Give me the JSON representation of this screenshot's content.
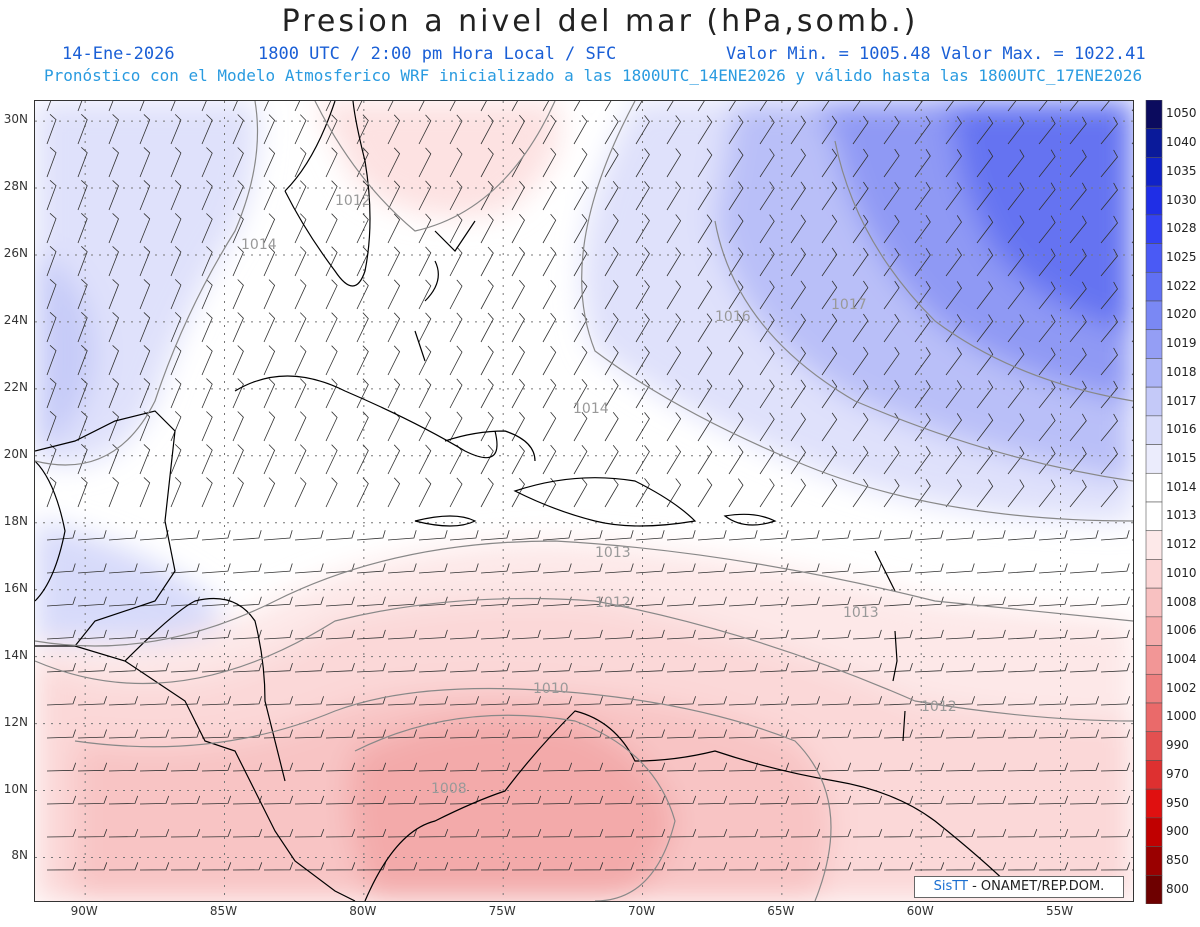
{
  "header": {
    "title": "Presion a nivel del mar (hPa,somb.)",
    "date": "14-Ene-2026",
    "time": "1800 UTC / 2:00 pm Hora Local / SFC",
    "range": "Valor Min. = 1005.48  Valor Max. = 1022.41",
    "subtitle": "Pronóstico con el Modelo Atmosferico WRF inicializado a las 1800UTC_14ENE2026 y válido hasta las  1800UTC_17ENE2026"
  },
  "axes": {
    "lat_labels": [
      "30N",
      "28N",
      "26N",
      "24N",
      "22N",
      "20N",
      "18N",
      "16N",
      "14N",
      "12N",
      "10N",
      "8N"
    ],
    "lat_values": [
      30,
      28,
      26,
      24,
      22,
      20,
      18,
      16,
      14,
      12,
      10,
      8
    ],
    "lon_labels": [
      "90W",
      "85W",
      "80W",
      "75W",
      "70W",
      "65W",
      "60W",
      "55W"
    ],
    "lon_values": [
      -90,
      -85,
      -80,
      -75,
      -70,
      -65,
      -60,
      -55
    ],
    "lat_range": [
      6.7,
      30.6
    ],
    "lon_range": [
      -91.8,
      -52.4
    ]
  },
  "colorbar": {
    "levels": [
      "1050",
      "1040",
      "1035",
      "1030",
      "1028",
      "1025",
      "1022",
      "1020",
      "1019",
      "1018",
      "1017",
      "1016",
      "1015",
      "1014",
      "1013",
      "1012",
      "1010",
      "1008",
      "1006",
      "1004",
      "1002",
      "1000",
      "990",
      "970",
      "950",
      "900",
      "850",
      "800"
    ],
    "colors": [
      "#0b0b5e",
      "#0a1a9a",
      "#1022c8",
      "#1f2ee6",
      "#3342f2",
      "#4a5af5",
      "#6070f4",
      "#7a88f4",
      "#949ef5",
      "#adb5f7",
      "#c4c9f8",
      "#d9dcfa",
      "#ebecfc",
      "#ffffff",
      "#ffffff",
      "#fde9e9",
      "#fbd5d5",
      "#f8c1c1",
      "#f5acac",
      "#f29696",
      "#ee8080",
      "#ea6a6a",
      "#e35050",
      "#de3030",
      "#e01010",
      "#c00000",
      "#9a0000",
      "#6e0000"
    ]
  },
  "contours": {
    "labels": [
      "1012",
      "1014",
      "1016",
      "1017",
      "1014",
      "1013",
      "1012",
      "1013",
      "1010",
      "1012",
      "1008"
    ]
  },
  "legend": {
    "type": "filled-contour-map",
    "variable": "sea-level pressure (hPa) with wind barbs"
  },
  "credit": {
    "logo": "SisTT",
    "text": "- ONAMET/REP.DOM."
  }
}
